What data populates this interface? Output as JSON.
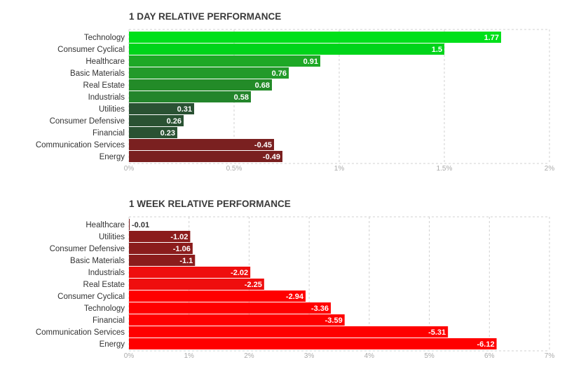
{
  "chart_data": [
    {
      "type": "bar",
      "orientation": "horizontal",
      "title": "1 DAY RELATIVE PERFORMANCE",
      "categories": [
        "Technology",
        "Consumer Cyclical",
        "Healthcare",
        "Basic Materials",
        "Real Estate",
        "Industrials",
        "Utilities",
        "Consumer Defensive",
        "Financial",
        "Communication Services",
        "Energy"
      ],
      "values": [
        1.77,
        1.5,
        0.91,
        0.76,
        0.68,
        0.58,
        0.31,
        0.26,
        0.23,
        -0.45,
        -0.49
      ],
      "value_labels": [
        "1.77",
        "1.5",
        "0.91",
        "0.76",
        "0.68",
        "0.58",
        "0.31",
        "0.26",
        "0.23",
        "-0.45",
        "-0.49"
      ],
      "colors": [
        "#00e01a",
        "#00d41a",
        "#1ea826",
        "#239a2a",
        "#238b28",
        "#23852b",
        "#2a5233",
        "#2a5233",
        "#2a5233",
        "#7a2020",
        "#7a2020"
      ],
      "xticks": [
        "0%",
        "0.5%",
        "1%",
        "1.5%",
        "2%"
      ],
      "xlim": [
        0,
        2
      ],
      "grid": true
    },
    {
      "type": "bar",
      "orientation": "horizontal",
      "title": "1 WEEK RELATIVE PERFORMANCE",
      "categories": [
        "Healthcare",
        "Utilities",
        "Consumer Defensive",
        "Basic Materials",
        "Industrials",
        "Real Estate",
        "Consumer Cyclical",
        "Technology",
        "Financial",
        "Communication Services",
        "Energy"
      ],
      "values": [
        -0.01,
        -1.02,
        -1.06,
        -1.1,
        -2.02,
        -2.25,
        -2.94,
        -3.36,
        -3.59,
        -5.31,
        -6.12
      ],
      "value_labels": [
        "-0.01",
        "-1.02",
        "-1.06",
        "-1.1",
        "-2.02",
        "-2.25",
        "-2.94",
        "-3.36",
        "-3.59",
        "-5.31",
        "-6.12"
      ],
      "colors": [
        "#7a1a1a",
        "#8b1c1c",
        "#8b1c1c",
        "#8b1c1c",
        "#ef0e0e",
        "#ef0e0e",
        "#ff0000",
        "#ff0000",
        "#ff0000",
        "#ff0000",
        "#ff0000"
      ],
      "xticks": [
        "0%",
        "1%",
        "2%",
        "3%",
        "4%",
        "5%",
        "6%",
        "7%"
      ],
      "xlim": [
        0,
        7
      ],
      "magnitude_axis": true,
      "grid": true
    }
  ]
}
